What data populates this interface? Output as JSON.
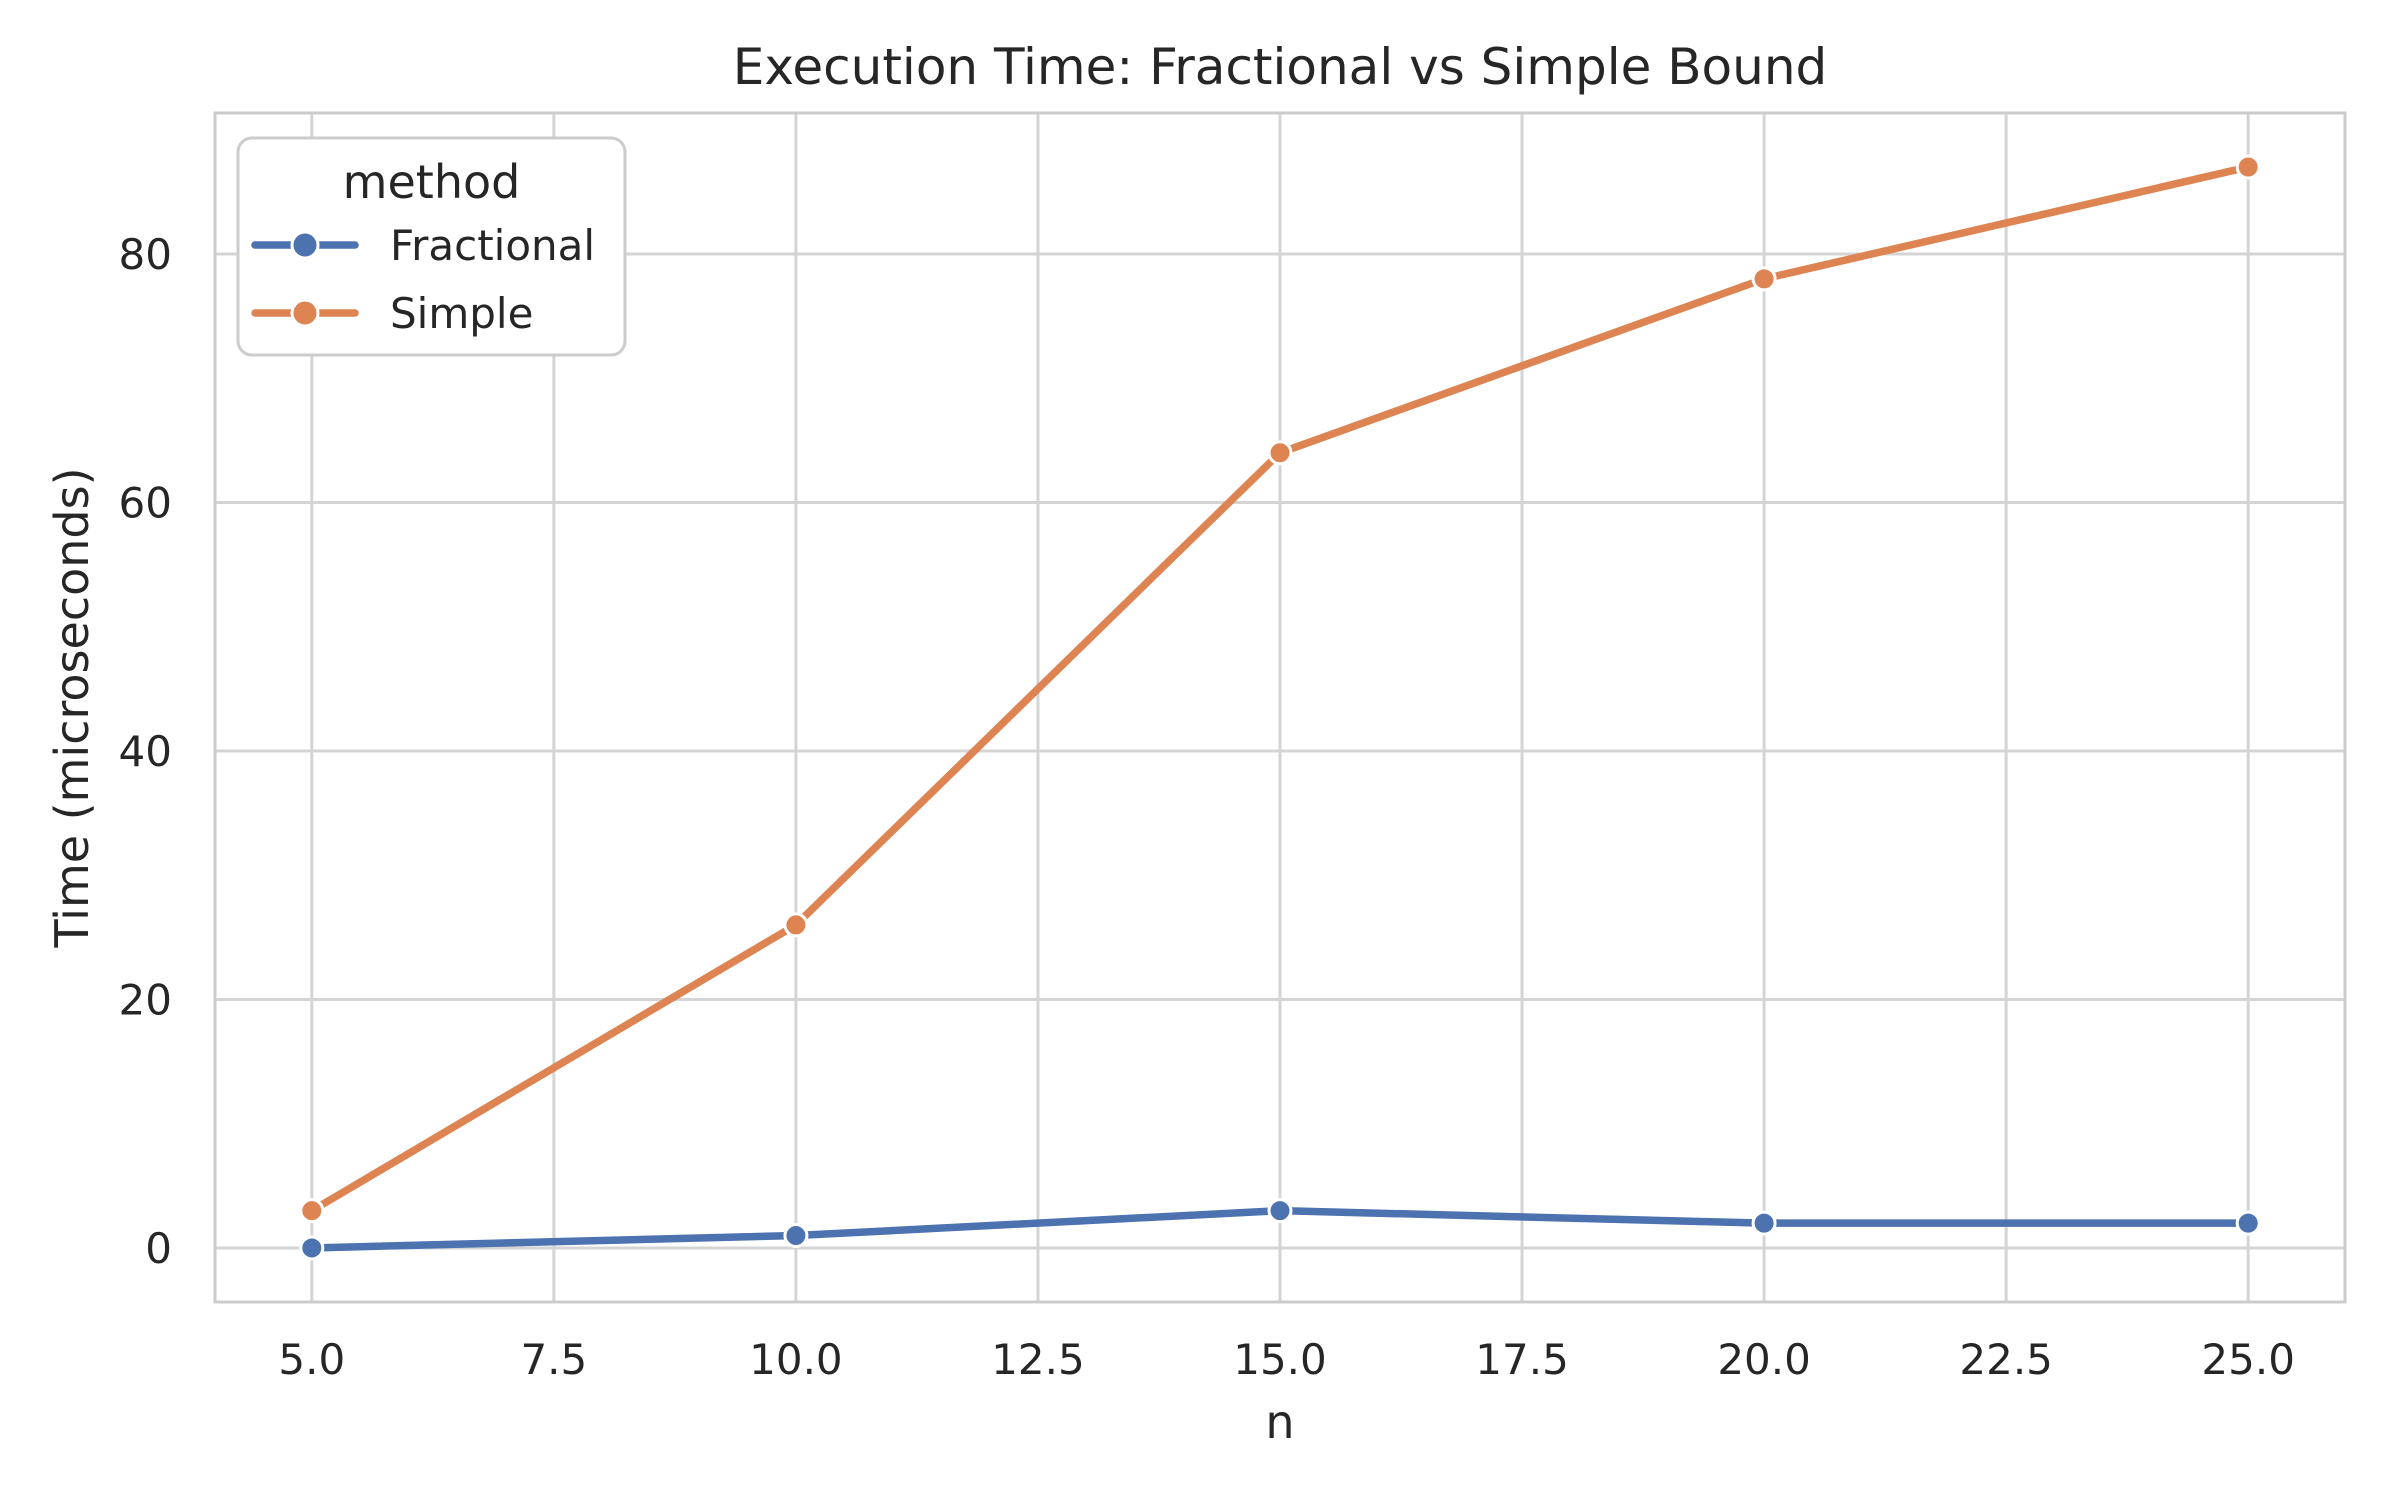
{
  "chart_data": {
    "type": "line",
    "title": "Execution Time: Fractional vs Simple Bound",
    "xlabel": "n",
    "ylabel": "Time (microseconds)",
    "x": [
      5,
      10,
      15,
      20,
      25
    ],
    "series": [
      {
        "name": "Fractional",
        "color": "#4C72B0",
        "values": [
          0,
          1,
          3,
          2,
          2
        ]
      },
      {
        "name": "Simple",
        "color": "#DD8452",
        "values": [
          3,
          26,
          64,
          78,
          87
        ]
      }
    ],
    "xlim": [
      4,
      26
    ],
    "ylim": [
      -4.35,
      91.35
    ],
    "xticks": [
      5.0,
      7.5,
      10.0,
      12.5,
      15.0,
      17.5,
      20.0,
      22.5,
      25.0
    ],
    "xtick_labels": [
      "5.0",
      "7.5",
      "10.0",
      "12.5",
      "15.0",
      "17.5",
      "20.0",
      "22.5",
      "25.0"
    ],
    "yticks": [
      0,
      20,
      40,
      60,
      80
    ],
    "ytick_labels": [
      "0",
      "20",
      "40",
      "60",
      "80"
    ],
    "grid": true,
    "legend": {
      "title": "method",
      "position": "upper left"
    },
    "colors": {
      "background": "#ffffff",
      "grid": "#D4D4D4",
      "spine": "#CCCCCC",
      "text": "#262626",
      "marker_edge": "#ffffff"
    }
  }
}
